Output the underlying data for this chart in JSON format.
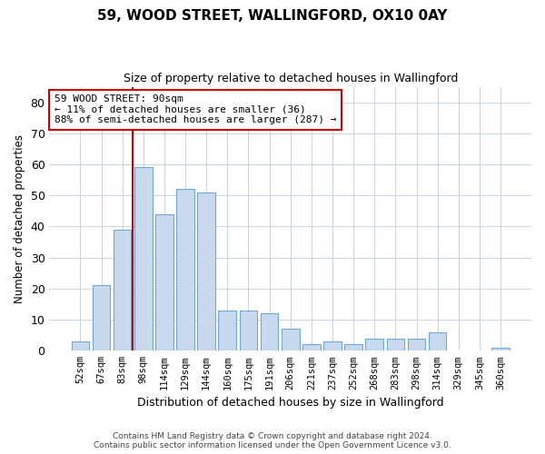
{
  "title": "59, WOOD STREET, WALLINGFORD, OX10 0AY",
  "subtitle": "Size of property relative to detached houses in Wallingford",
  "xlabel": "Distribution of detached houses by size in Wallingford",
  "ylabel": "Number of detached properties",
  "categories": [
    "52sqm",
    "67sqm",
    "83sqm",
    "98sqm",
    "114sqm",
    "129sqm",
    "144sqm",
    "160sqm",
    "175sqm",
    "191sqm",
    "206sqm",
    "221sqm",
    "237sqm",
    "252sqm",
    "268sqm",
    "283sqm",
    "298sqm",
    "314sqm",
    "329sqm",
    "345sqm",
    "360sqm"
  ],
  "values": [
    3,
    21,
    39,
    59,
    44,
    52,
    51,
    13,
    13,
    12,
    7,
    2,
    3,
    2,
    4,
    4,
    4,
    6,
    0,
    0,
    1
  ],
  "bar_color": "#c9d9ed",
  "bar_edge_color": "#6fa8d6",
  "vline_x": 2.5,
  "vline_color": "#cc0000",
  "annotation_line1": "59 WOOD STREET: 90sqm",
  "annotation_line2": "← 11% of detached houses are smaller (36)",
  "annotation_line3": "88% of semi-detached houses are larger (287) →",
  "annotation_box_color": "#ffffff",
  "annotation_box_edge": "#cc0000",
  "ylim": [
    0,
    85
  ],
  "yticks": [
    0,
    10,
    20,
    30,
    40,
    50,
    60,
    70,
    80
  ],
  "footer_line1": "Contains HM Land Registry data © Crown copyright and database right 2024.",
  "footer_line2": "Contains public sector information licensed under the Open Government Licence v3.0.",
  "background_color": "#ffffff",
  "grid_color": "#c8d4e3"
}
